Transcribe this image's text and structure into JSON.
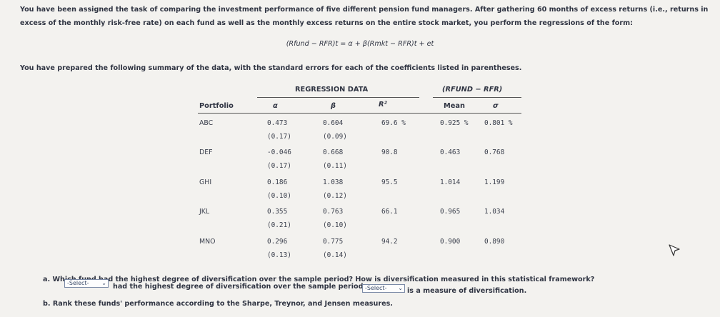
{
  "intro": {
    "line1": "You have been assigned the task of comparing the investment performance of five different pension fund managers. After gathering 60 months of excess returns (i.e., returns in",
    "line2": "excess of the monthly risk-free rate) on each fund as well as the monthly excess returns on the entire stock market, you perform the regressions of the form:"
  },
  "formula": "(Rfund − RFR)t = α + β(Rmkt − RFR)t + et",
  "prepared": "You have prepared the following summary of the data, with the standard errors for each of the coefficients listed in parentheses.",
  "table": {
    "group_regression": "REGRESSION DATA",
    "group_rfund": "(RFUND − RFR)",
    "col_portfolio": "Portfolio",
    "col_alpha": "α",
    "col_beta": "β",
    "col_r2": "R²",
    "col_mean": "Mean",
    "col_sigma": "σ",
    "rows": [
      {
        "name": "ABC",
        "alpha": "0.473",
        "alpha_se": "(0.17)",
        "beta": "0.604",
        "beta_se": "(0.09)",
        "r2": "69.6 %",
        "mean": "0.925 %",
        "sigma": "0.801 %"
      },
      {
        "name": "DEF",
        "alpha": "-0.046",
        "alpha_se": "(0.17)",
        "beta": "0.668",
        "beta_se": "(0.11)",
        "r2": "90.8",
        "mean": "0.463",
        "sigma": "0.768"
      },
      {
        "name": "GHI",
        "alpha": "0.186",
        "alpha_se": "(0.10)",
        "beta": "1.038",
        "beta_se": "(0.12)",
        "r2": "95.5",
        "mean": "1.014",
        "sigma": "1.199"
      },
      {
        "name": "JKL",
        "alpha": "0.355",
        "alpha_se": "(0.21)",
        "beta": "0.763",
        "beta_se": "(0.10)",
        "r2": "66.1",
        "mean": "0.965",
        "sigma": "1.034"
      },
      {
        "name": "MNO",
        "alpha": "0.296",
        "alpha_se": "(0.13)",
        "beta": "0.775",
        "beta_se": "(0.14)",
        "r2": "94.2",
        "mean": "0.900",
        "sigma": "0.890"
      }
    ]
  },
  "question_a": {
    "text": "a. Which fund had the highest degree of diversification over the sample period? How is diversification measured in this statistical framework?",
    "select1": "-Select-",
    "mid": "had the highest degree of diversification over the sample period.",
    "select2": "-Select-",
    "end": "is a measure of diversification."
  },
  "question_b": "b. Rank these funds' performance according to the Sharpe, Treynor, and Jensen measures."
}
